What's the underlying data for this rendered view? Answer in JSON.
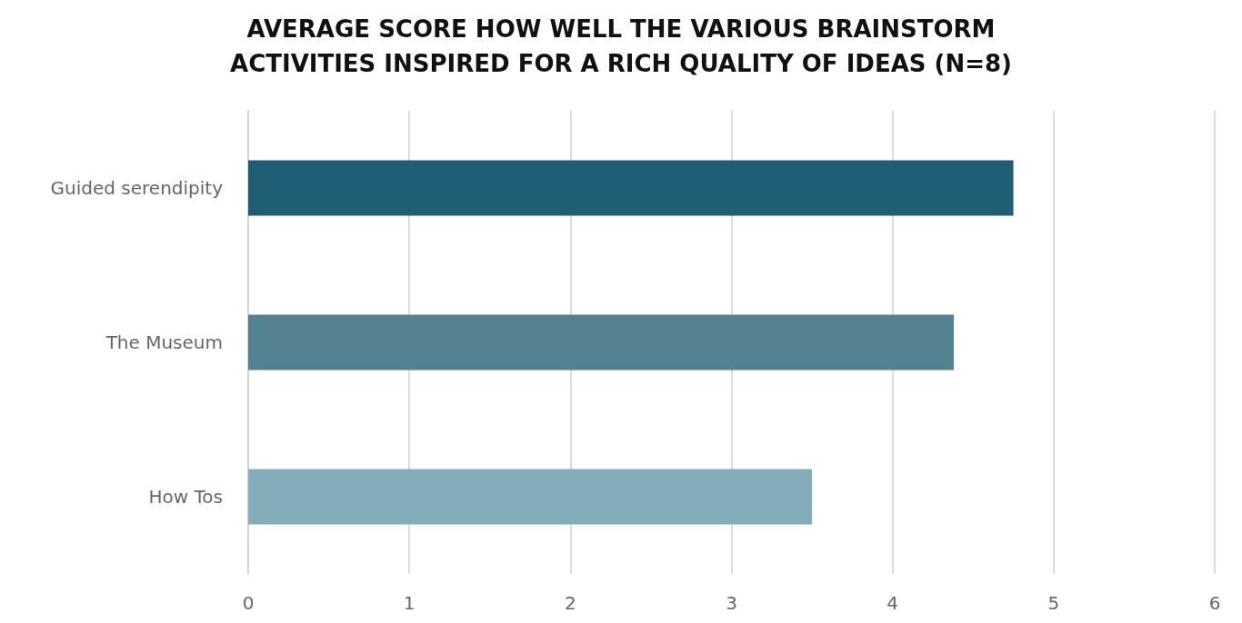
{
  "chart_data": {
    "type": "bar",
    "orientation": "horizontal",
    "title": "AVERAGE SCORE HOW WELL THE VARIOUS BRAINSTORM\nACTIVITIES INSPIRED FOR A RICH QUALITY OF IDEAS (N=8)",
    "categories": [
      "Guided serendipity",
      "The Museum",
      "How Tos"
    ],
    "values": [
      4.75,
      4.38,
      3.5
    ],
    "colors": [
      "#1f5e74",
      "#548290",
      "#84adbb"
    ],
    "xlim": [
      0,
      6
    ],
    "xticks": [
      0,
      1,
      2,
      3,
      4,
      5,
      6
    ],
    "grid": "x"
  }
}
